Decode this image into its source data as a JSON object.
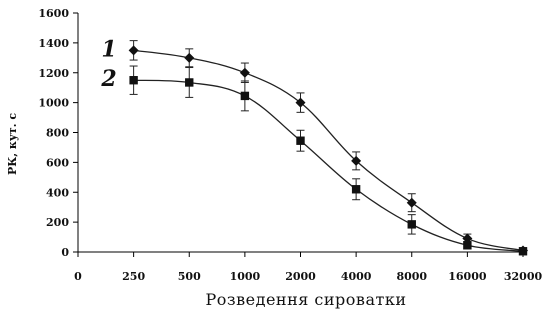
{
  "chart_data": {
    "type": "line",
    "title": "",
    "xlabel": "Розведення сироватки",
    "ylabel": "РК, кут. с",
    "x_ticks": [
      "0",
      "250",
      "500",
      "1000",
      "2000",
      "4000",
      "8000",
      "16000",
      "32000"
    ],
    "y_ticks": [
      "0",
      "200",
      "400",
      "600",
      "800",
      "1000",
      "1200",
      "1400",
      "1600"
    ],
    "ylim": [
      0,
      1600
    ],
    "categories": [
      "250",
      "500",
      "1000",
      "2000",
      "4000",
      "8000",
      "16000",
      "32000"
    ],
    "series": [
      {
        "name": "1",
        "marker": "diamond",
        "values": [
          1350,
          1300,
          1200,
          1000,
          610,
          330,
          90,
          10
        ],
        "errors": [
          65,
          60,
          65,
          65,
          60,
          60,
          30,
          10
        ]
      },
      {
        "name": "2",
        "marker": "square",
        "values": [
          1150,
          1135,
          1045,
          745,
          420,
          185,
          45,
          5
        ],
        "errors": [
          95,
          100,
          100,
          70,
          70,
          65,
          25,
          10
        ]
      }
    ],
    "grid": false,
    "legend": "inline-left"
  },
  "colors": {
    "line": "#222222",
    "axis": "#000000",
    "text": "#111111"
  }
}
